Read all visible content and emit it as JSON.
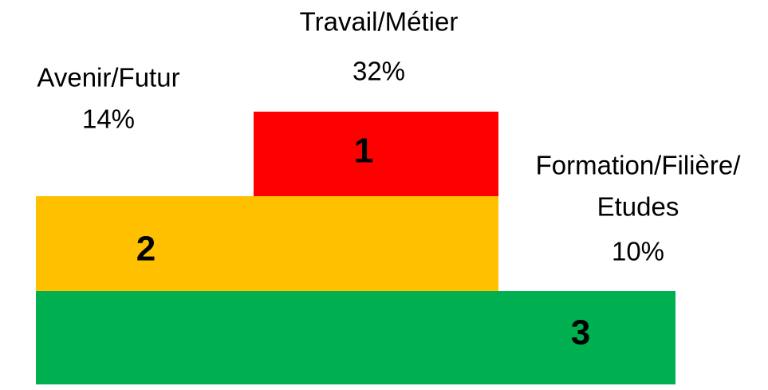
{
  "podium": [
    {
      "rank": "1",
      "label": [
        "Travail/Métier"
      ],
      "value": "32%"
    },
    {
      "rank": "2",
      "label": [
        "Avenir/Futur"
      ],
      "value": "14%"
    },
    {
      "rank": "3",
      "label": [
        "Formation/Filière/",
        "Etudes"
      ],
      "value": "10%"
    }
  ]
}
